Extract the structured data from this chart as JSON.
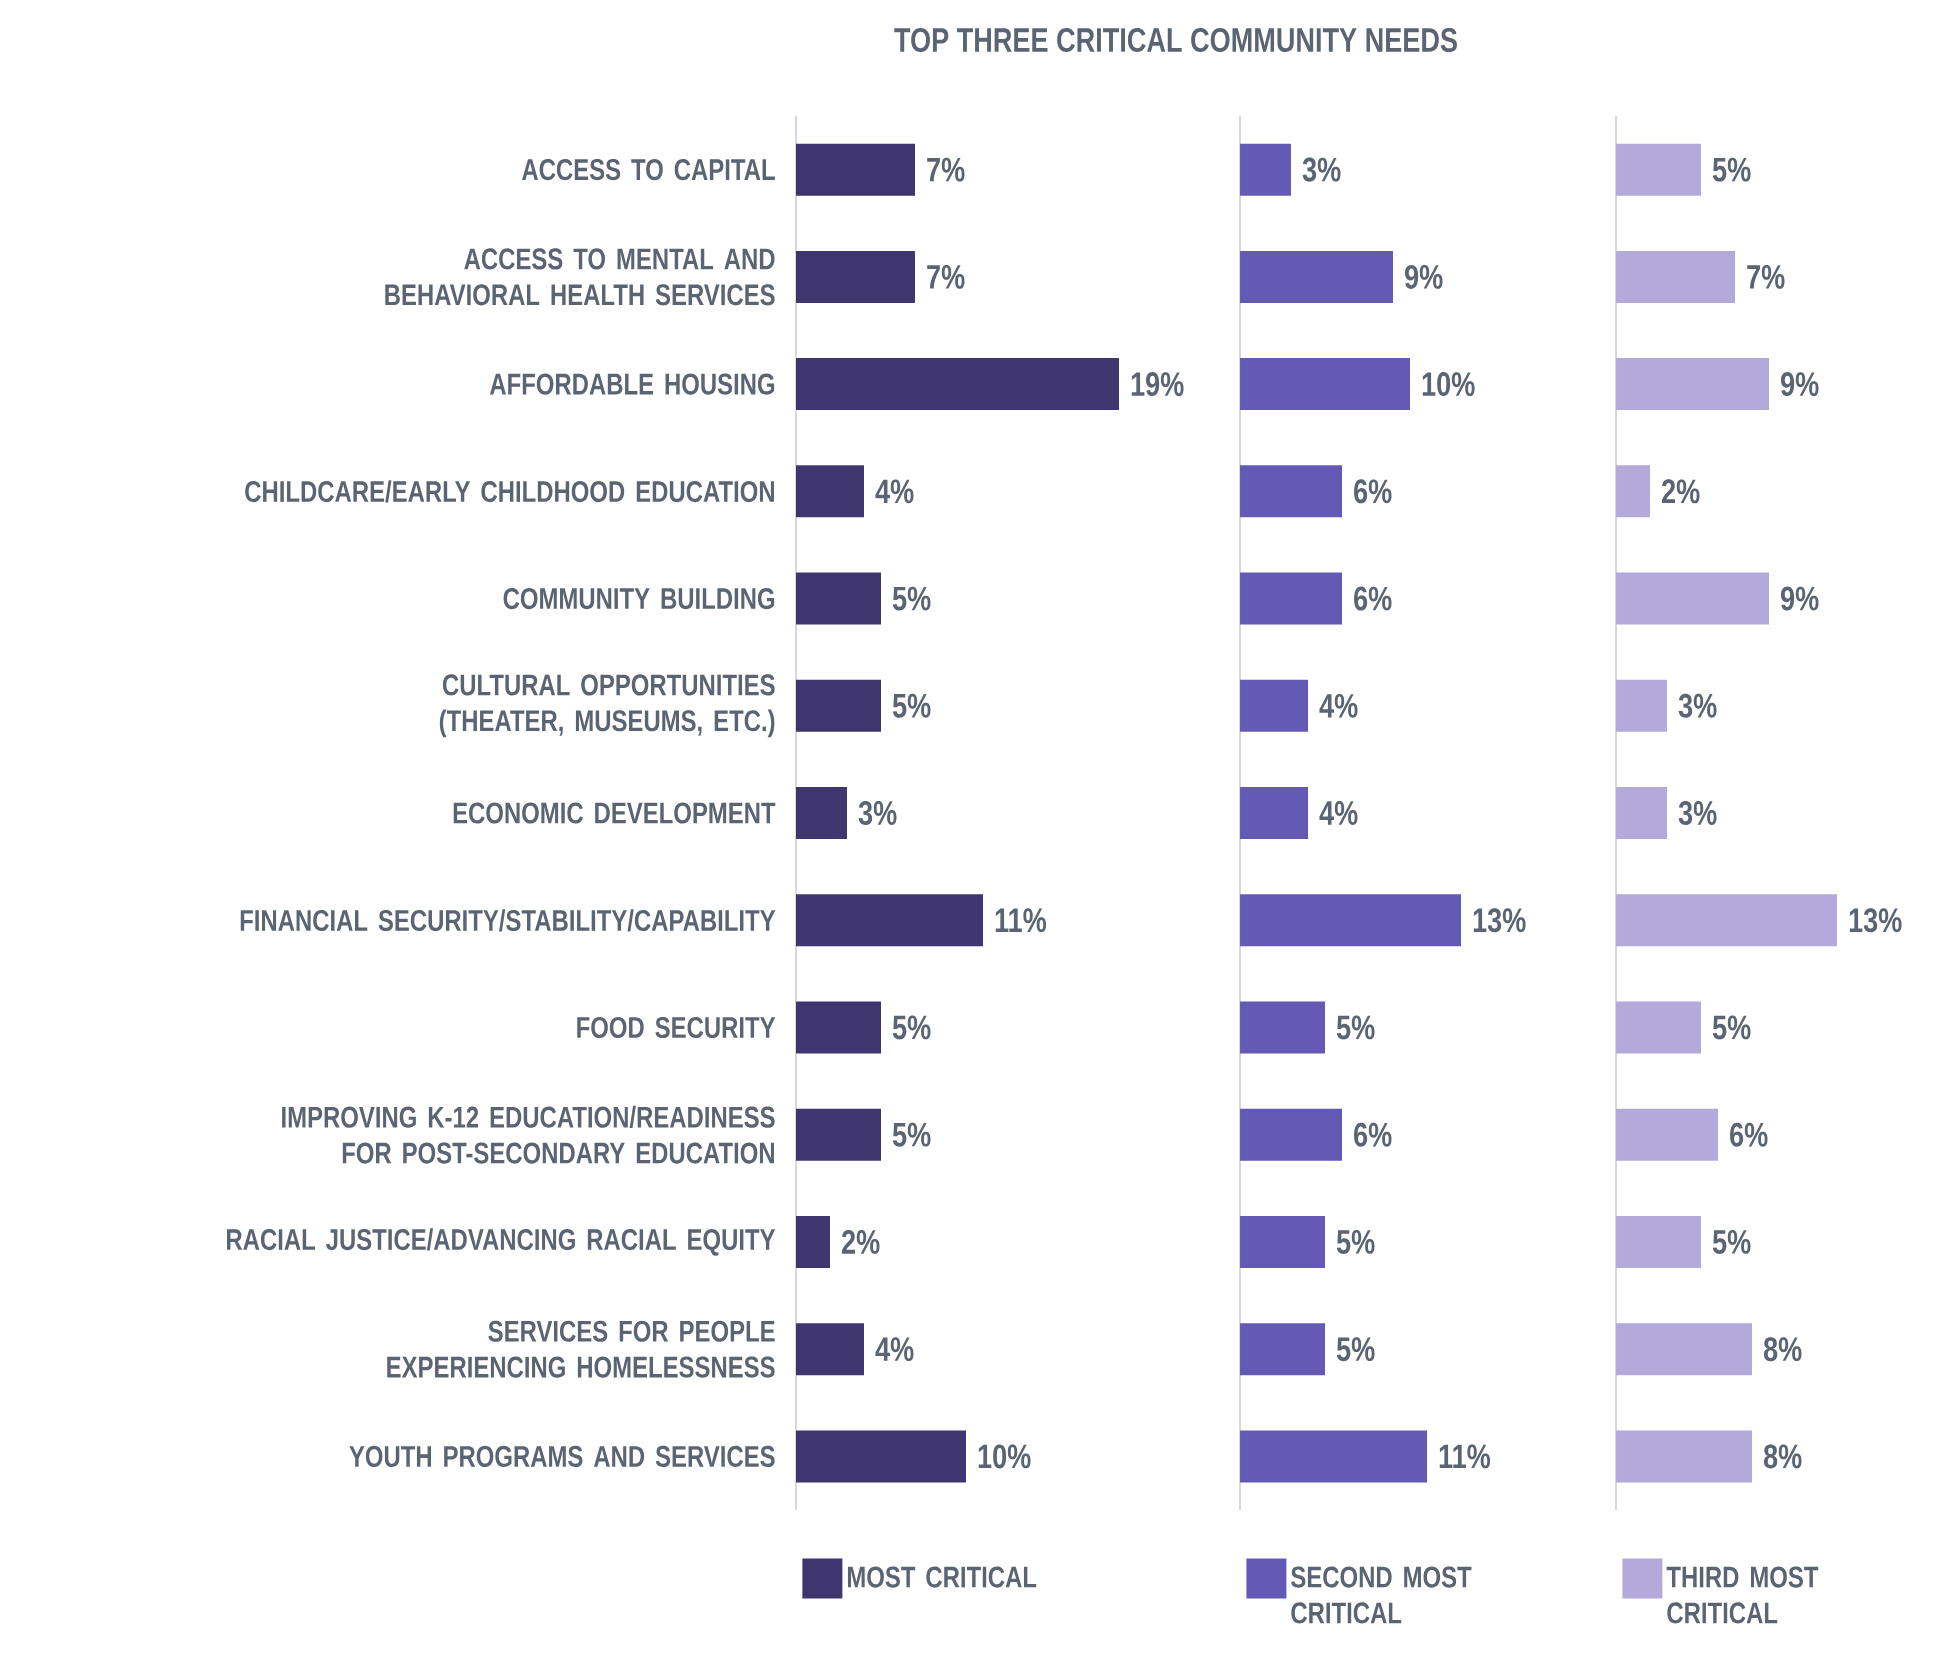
{
  "chart_data": [
    {
      "type": "bar",
      "orientation": "horizontal",
      "title": "TOP THREE CRITICAL COMMUNITY NEEDS",
      "categories": [
        "ACCESS TO CAPITAL",
        "ACCESS TO MENTAL AND BEHAVIORAL HEALTH SERVICES",
        "AFFORDABLE HOUSING",
        "CHILDCARE/EARLY CHILDHOOD EDUCATION",
        "COMMUNITY BUILDING",
        "CULTURAL OPPORTUNITIES (THEATER, MUSEUMS, ETC.)",
        "ECONOMIC DEVELOPMENT",
        "FINANCIAL SECURITY/STABILITY/CAPABILITY",
        "FOOD SECURITY",
        "IMPROVING K-12 EDUCATION/READINESS FOR POST-SECONDARY EDUCATION",
        "RACIAL JUSTICE/ADVANCING RACIAL EQUITY",
        "SERVICES FOR PEOPLE EXPERIENCING HOMELESSNESS",
        "YOUTH PROGRAMS AND SERVICES"
      ],
      "tick_labels": "y",
      "legend": "bottom",
      "series": [
        {
          "name": "MOST CRITICAL",
          "color": "#3f3670",
          "values": [
            7,
            7,
            19,
            4,
            5,
            5,
            3,
            11,
            5,
            5,
            2,
            4,
            10
          ],
          "value_labels": [
            "7%",
            "7%",
            "19%",
            "4%",
            "5%",
            "5%",
            "3%",
            "11%",
            "5%",
            "5%",
            "2%",
            "4%",
            "10%"
          ]
        }
      ]
    },
    {
      "type": "bar",
      "orientation": "horizontal",
      "tick_labels": false,
      "legend": "bottom",
      "series": [
        {
          "name": "SECOND MOST CRITICAL",
          "color": "#6459b4",
          "values": [
            3,
            9,
            10,
            6,
            6,
            4,
            4,
            13,
            5,
            6,
            5,
            5,
            11
          ],
          "value_labels": [
            "3%",
            "9%",
            "10%",
            "6%",
            "6%",
            "4%",
            "4%",
            "13%",
            "5%",
            "6%",
            "5%",
            "5%",
            "11%"
          ]
        }
      ]
    },
    {
      "type": "bar",
      "orientation": "horizontal",
      "tick_labels": false,
      "legend": "bottom",
      "series": [
        {
          "name": "THIRD MOST CRITICAL",
          "color": "#b3aadb",
          "values": [
            5,
            7,
            9,
            2,
            9,
            3,
            3,
            13,
            5,
            6,
            5,
            8,
            8
          ],
          "value_labels": [
            "5%",
            "7%",
            "9%",
            "2%",
            "9%",
            "3%",
            "3%",
            "13%",
            "5%",
            "6%",
            "5%",
            "8%",
            "8%"
          ]
        }
      ]
    }
  ]
}
